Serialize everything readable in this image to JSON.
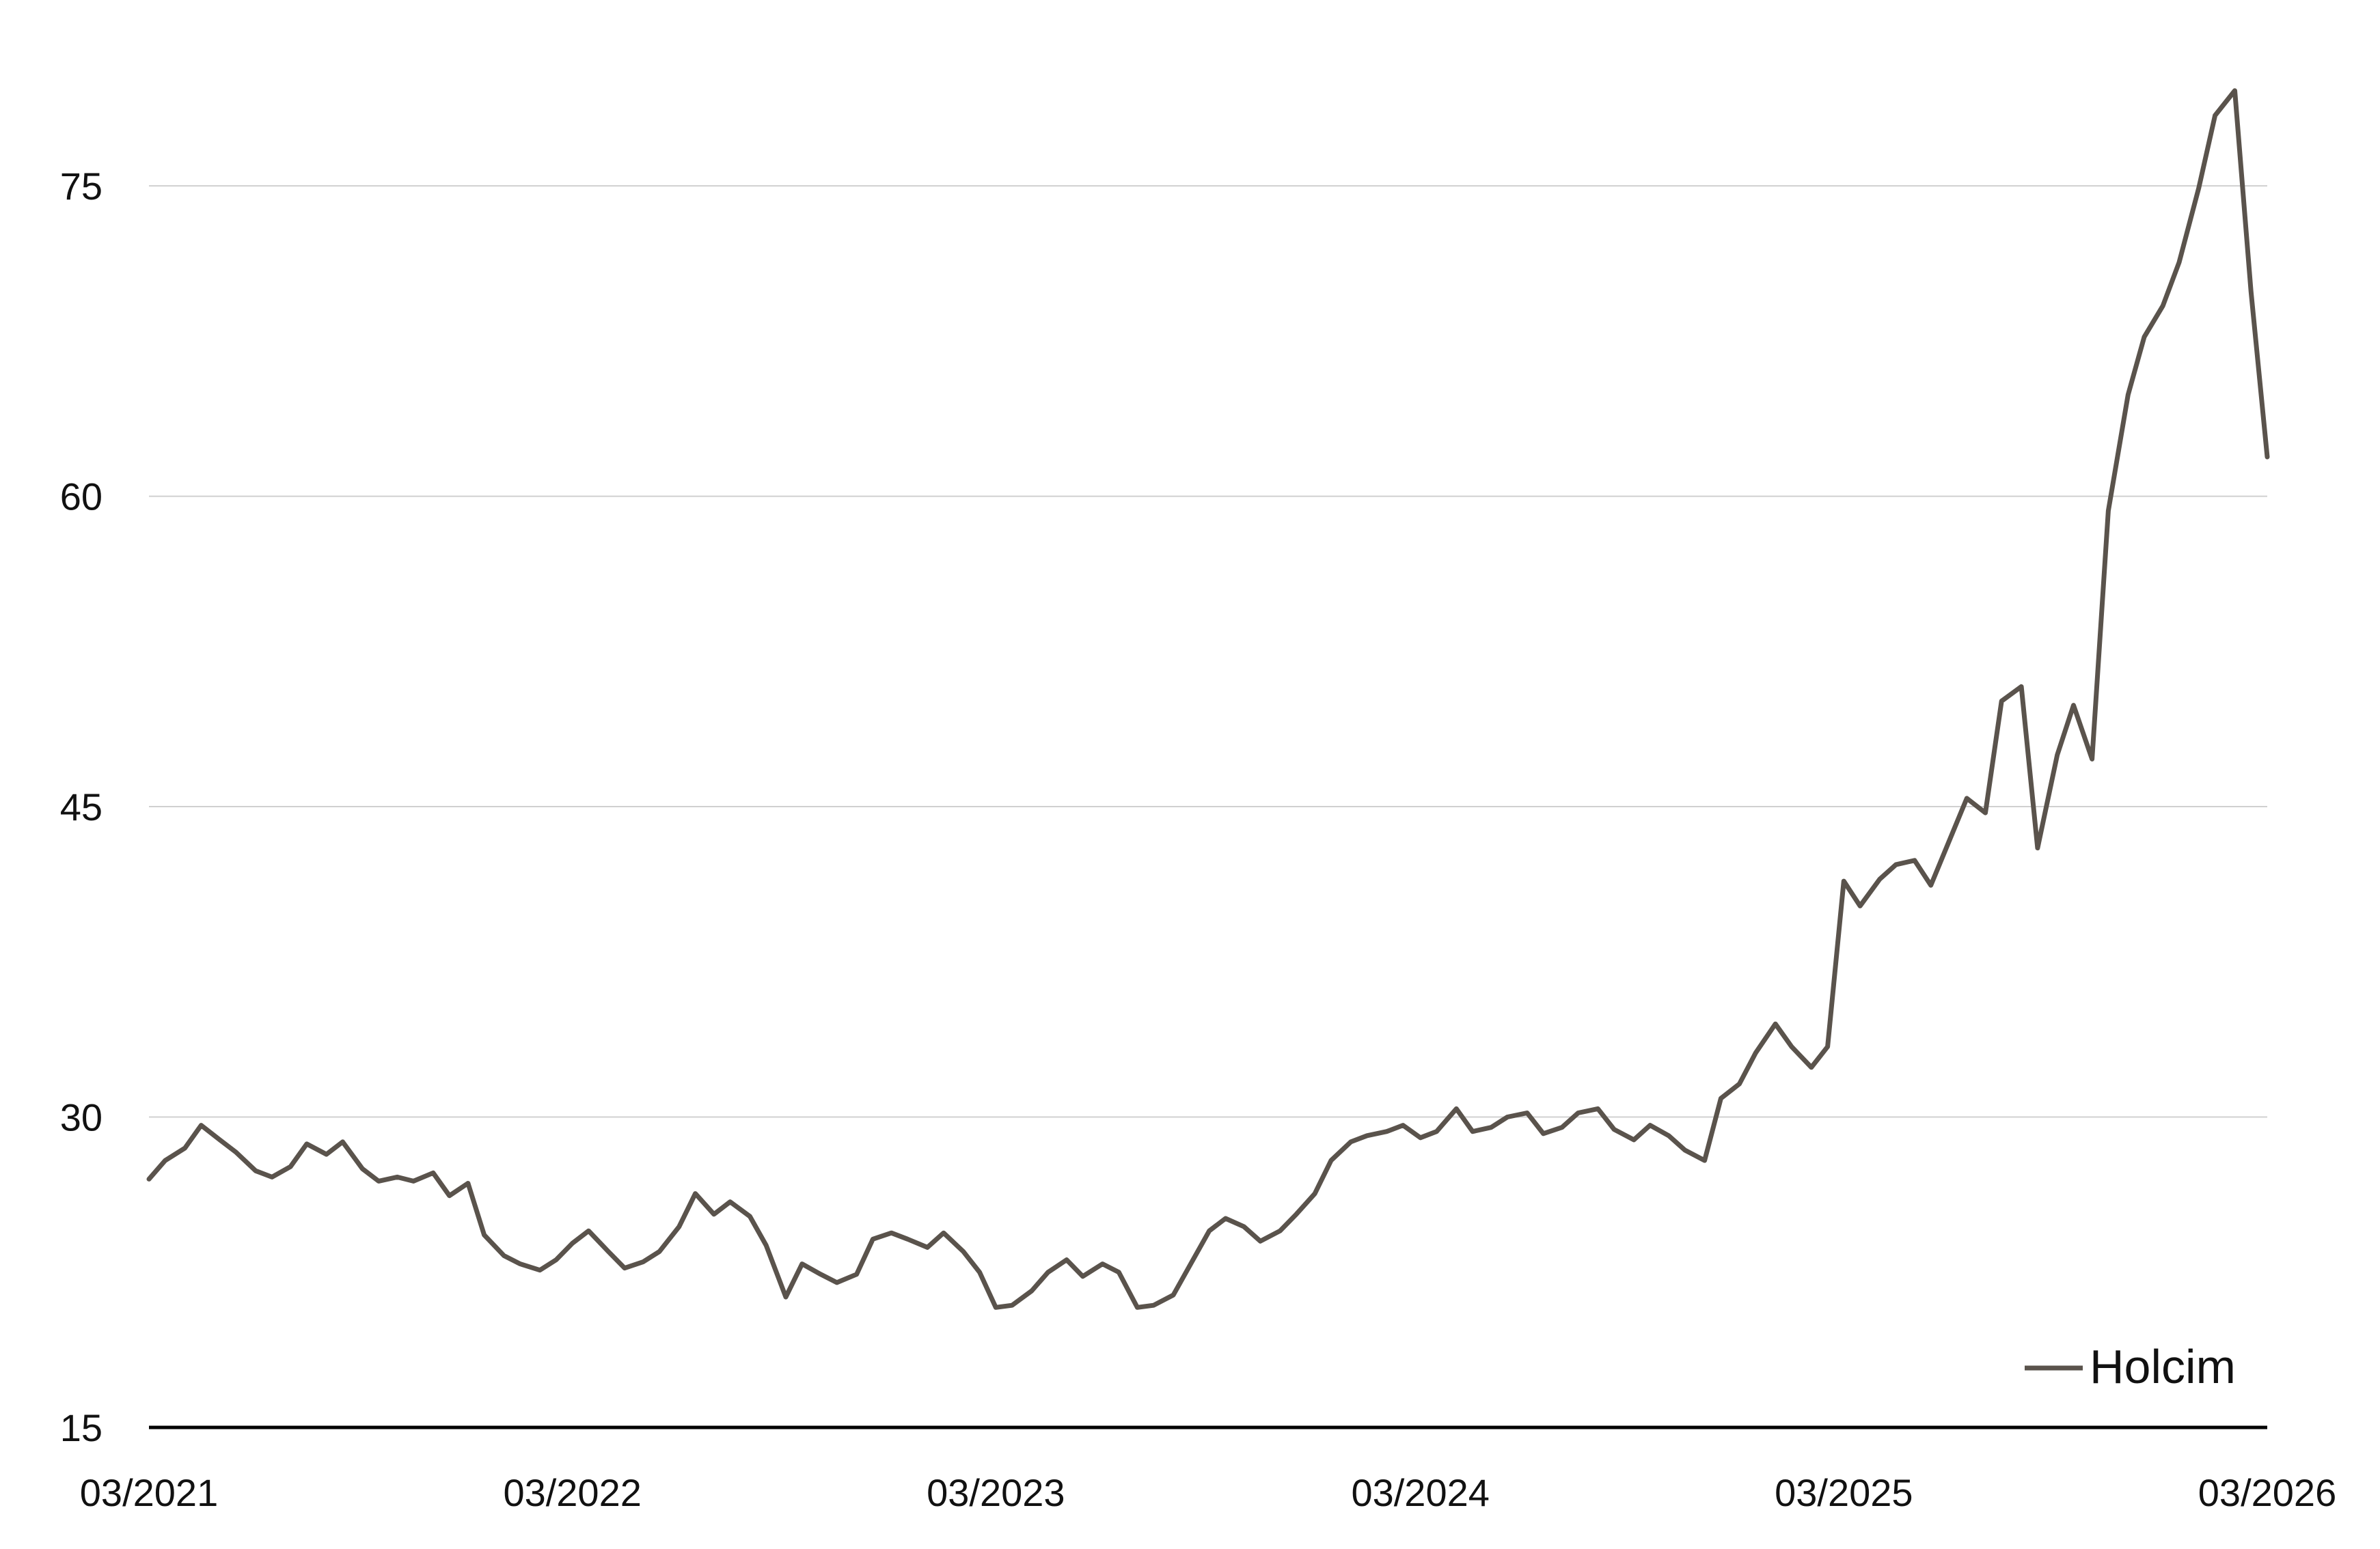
{
  "chart_data": {
    "type": "line",
    "title": "",
    "xlabel": "",
    "ylabel": "",
    "ylim": [
      15,
      82
    ],
    "xlim": [
      "2021-03",
      "2026-03"
    ],
    "grid": {
      "y": true,
      "x": false
    },
    "legend_position": "bottom-right",
    "y_ticks": [
      {
        "value": 15,
        "label": "15"
      },
      {
        "value": 30,
        "label": "30"
      },
      {
        "value": 45,
        "label": "45"
      },
      {
        "value": 60,
        "label": "60"
      },
      {
        "value": 75,
        "label": "75"
      }
    ],
    "x_ticks": [
      {
        "value": "2021-03",
        "label": "03/2021"
      },
      {
        "value": "2022-03",
        "label": "03/2022"
      },
      {
        "value": "2023-03",
        "label": "03/2023"
      },
      {
        "value": "2024-03",
        "label": "03/2024"
      },
      {
        "value": "2025-03",
        "label": "03/2025"
      },
      {
        "value": "2026-03",
        "label": "03/2026"
      }
    ],
    "series": [
      {
        "name": "Holcim",
        "color": "#5a534c",
        "points": [
          [
            "2021-03-01",
            27.0
          ],
          [
            "2021-03-15",
            27.9
          ],
          [
            "2021-04-01",
            28.5
          ],
          [
            "2021-04-15",
            29.6
          ],
          [
            "2021-05-01",
            28.9
          ],
          [
            "2021-05-15",
            28.3
          ],
          [
            "2021-06-01",
            27.4
          ],
          [
            "2021-06-15",
            27.1
          ],
          [
            "2021-07-01",
            27.6
          ],
          [
            "2021-07-15",
            28.7
          ],
          [
            "2021-08-01",
            28.2
          ],
          [
            "2021-08-15",
            28.8
          ],
          [
            "2021-09-01",
            27.5
          ],
          [
            "2021-09-15",
            26.9
          ],
          [
            "2021-10-01",
            27.1
          ],
          [
            "2021-10-15",
            26.9
          ],
          [
            "2021-11-01",
            27.3
          ],
          [
            "2021-11-15",
            26.2
          ],
          [
            "2021-12-01",
            26.8
          ],
          [
            "2021-12-15",
            24.3
          ],
          [
            "2022-01-01",
            23.3
          ],
          [
            "2022-01-15",
            22.9
          ],
          [
            "2022-02-01",
            22.6
          ],
          [
            "2022-02-15",
            23.1
          ],
          [
            "2022-03-01",
            23.9
          ],
          [
            "2022-03-15",
            24.5
          ],
          [
            "2022-04-01",
            23.5
          ],
          [
            "2022-04-15",
            22.7
          ],
          [
            "2022-05-01",
            23.0
          ],
          [
            "2022-05-15",
            23.5
          ],
          [
            "2022-06-01",
            24.7
          ],
          [
            "2022-06-15",
            26.3
          ],
          [
            "2022-07-01",
            25.3
          ],
          [
            "2022-07-15",
            25.9
          ],
          [
            "2022-08-01",
            25.2
          ],
          [
            "2022-08-15",
            23.8
          ],
          [
            "2022-09-01",
            21.3
          ],
          [
            "2022-09-15",
            22.9
          ],
          [
            "2022-10-01",
            22.4
          ],
          [
            "2022-10-15",
            22.0
          ],
          [
            "2022-11-01",
            22.4
          ],
          [
            "2022-11-15",
            24.1
          ],
          [
            "2022-12-01",
            24.4
          ],
          [
            "2022-12-15",
            24.1
          ],
          [
            "2023-01-01",
            23.7
          ],
          [
            "2023-01-15",
            24.4
          ],
          [
            "2023-02-01",
            23.5
          ],
          [
            "2023-02-15",
            22.5
          ],
          [
            "2023-03-01",
            20.8
          ],
          [
            "2023-03-15",
            20.9
          ],
          [
            "2023-04-01",
            21.6
          ],
          [
            "2023-04-15",
            22.5
          ],
          [
            "2023-05-01",
            23.1
          ],
          [
            "2023-05-15",
            22.3
          ],
          [
            "2023-06-01",
            22.9
          ],
          [
            "2023-06-15",
            22.5
          ],
          [
            "2023-07-01",
            20.8
          ],
          [
            "2023-07-15",
            20.9
          ],
          [
            "2023-08-01",
            21.4
          ],
          [
            "2023-08-15",
            22.8
          ],
          [
            "2023-09-01",
            24.5
          ],
          [
            "2023-09-15",
            25.1
          ],
          [
            "2023-10-01",
            24.7
          ],
          [
            "2023-10-15",
            24.0
          ],
          [
            "2023-11-01",
            24.5
          ],
          [
            "2023-11-15",
            25.3
          ],
          [
            "2023-12-01",
            26.3
          ],
          [
            "2023-12-15",
            27.9
          ],
          [
            "2024-01-01",
            28.8
          ],
          [
            "2024-01-15",
            29.1
          ],
          [
            "2024-02-01",
            29.3
          ],
          [
            "2024-02-15",
            29.6
          ],
          [
            "2024-03-01",
            29.0
          ],
          [
            "2024-03-15",
            29.3
          ],
          [
            "2024-04-01",
            30.4
          ],
          [
            "2024-04-15",
            29.3
          ],
          [
            "2024-05-01",
            29.5
          ],
          [
            "2024-05-15",
            30.0
          ],
          [
            "2024-06-01",
            30.2
          ],
          [
            "2024-06-15",
            29.2
          ],
          [
            "2024-07-01",
            29.5
          ],
          [
            "2024-07-15",
            30.2
          ],
          [
            "2024-08-01",
            30.4
          ],
          [
            "2024-08-15",
            29.4
          ],
          [
            "2024-09-01",
            28.9
          ],
          [
            "2024-09-15",
            29.6
          ],
          [
            "2024-10-01",
            29.1
          ],
          [
            "2024-10-15",
            28.4
          ],
          [
            "2024-11-01",
            27.9
          ],
          [
            "2024-11-15",
            30.9
          ],
          [
            "2024-12-01",
            31.6
          ],
          [
            "2024-12-15",
            33.1
          ],
          [
            "2025-01-01",
            34.5
          ],
          [
            "2025-01-15",
            33.4
          ],
          [
            "2025-02-01",
            32.4
          ],
          [
            "2025-02-15",
            33.4
          ],
          [
            "2025-03-01",
            41.4
          ],
          [
            "2025-03-15",
            40.2
          ],
          [
            "2025-04-01",
            41.5
          ],
          [
            "2025-04-15",
            42.2
          ],
          [
            "2025-05-01",
            42.4
          ],
          [
            "2025-05-15",
            41.2
          ],
          [
            "2025-06-01",
            43.5
          ],
          [
            "2025-06-15",
            45.4
          ],
          [
            "2025-07-01",
            44.7
          ],
          [
            "2025-07-15",
            50.1
          ],
          [
            "2025-08-01",
            50.8
          ],
          [
            "2025-08-15",
            43.0
          ],
          [
            "2025-09-01",
            47.5
          ],
          [
            "2025-09-15",
            49.9
          ],
          [
            "2025-10-01",
            47.3
          ],
          [
            "2025-10-15",
            59.3
          ],
          [
            "2025-11-01",
            64.9
          ],
          [
            "2025-11-15",
            67.7
          ],
          [
            "2025-12-01",
            69.2
          ],
          [
            "2025-12-15",
            71.3
          ],
          [
            "2026-01-01",
            74.9
          ],
          [
            "2026-01-15",
            78.4
          ],
          [
            "2026-02-01",
            79.6
          ],
          [
            "2026-02-15",
            69.9
          ],
          [
            "2026-03-01",
            61.9
          ]
        ]
      }
    ]
  }
}
